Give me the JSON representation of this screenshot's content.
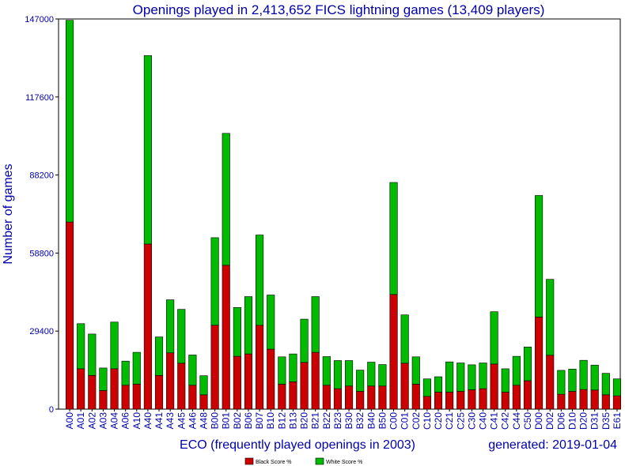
{
  "chart_data": {
    "type": "bar",
    "stacked": true,
    "title": "Openings played in 2,413,652 FICS lightning games (13,409 players)",
    "xlabel": "ECO (frequently played openings in 2003)",
    "ylabel": "Number of games",
    "note": "generated: 2019-01-04",
    "ylim": [
      0,
      147000
    ],
    "yticks": [
      0,
      29400,
      58800,
      88200,
      117600,
      147000
    ],
    "grid": false,
    "legend_position": "bottom-center",
    "categories": [
      "A00",
      "A01",
      "A02",
      "A03",
      "A04",
      "A06",
      "A10",
      "A40",
      "A41",
      "A43",
      "A45",
      "A46",
      "A48",
      "B00",
      "B01",
      "B02",
      "B06",
      "B07",
      "B10",
      "B12",
      "B13",
      "B20",
      "B21",
      "B22",
      "B23",
      "B30",
      "B32",
      "B40",
      "B50",
      "C00",
      "C01",
      "C02",
      "C10",
      "C20",
      "C21",
      "C25",
      "C30",
      "C40",
      "C41",
      "C42",
      "C44",
      "C50",
      "D00",
      "D02",
      "D06",
      "D10",
      "D20",
      "D31",
      "D35",
      "E61"
    ],
    "series": [
      {
        "name": "Black Score %",
        "color": "#cc0000",
        "values": [
          70500,
          15200,
          12700,
          7000,
          15200,
          9000,
          9400,
          62200,
          12700,
          21200,
          17300,
          9000,
          5400,
          31600,
          54200,
          19900,
          20800,
          31600,
          22600,
          9400,
          10300,
          17600,
          21400,
          9000,
          7700,
          8700,
          6700,
          8700,
          8700,
          43200,
          17300,
          9400,
          4800,
          6400,
          6400,
          6700,
          7300,
          7700,
          17000,
          6400,
          9000,
          10700,
          34700,
          20300,
          5600,
          6700,
          7400,
          7200,
          5400,
          5000
        ]
      },
      {
        "name": "White Score %",
        "color": "#00bb00",
        "values": [
          76000,
          17000,
          15600,
          8500,
          17600,
          9100,
          12000,
          71000,
          14500,
          20000,
          20300,
          11400,
          7200,
          33000,
          49700,
          18400,
          21600,
          34000,
          20400,
          10300,
          10500,
          16300,
          21000,
          10800,
          10600,
          9600,
          8000,
          9000,
          8100,
          42200,
          18200,
          10300,
          6600,
          5800,
          11400,
          10700,
          9400,
          9700,
          19700,
          8800,
          10900,
          12700,
          45800,
          28600,
          9000,
          8400,
          11000,
          9400,
          8100,
          6400
        ]
      }
    ]
  }
}
